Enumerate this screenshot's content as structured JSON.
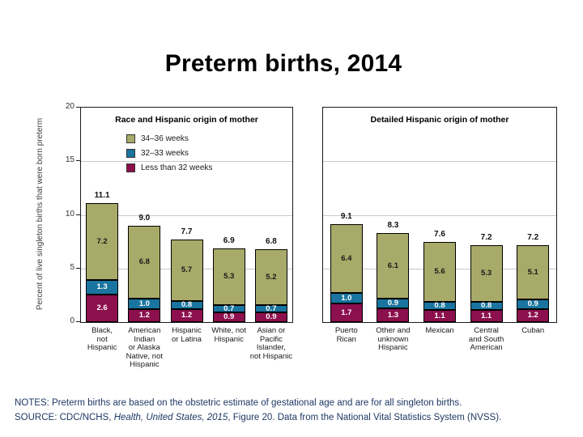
{
  "slide": {
    "title": "Preterm births, 2014",
    "notes_line1": "NOTES: Preterm births are based on the obstetric estimate of gestational age and are for all singleton births.",
    "source_prefix": "SOURCE: CDC/NCHS, ",
    "source_italic": "Health, United States, 2015",
    "source_suffix": ", Figure 20. Data from the National Vital Statistics System (NVSS).",
    "notes_color": "#1f3864"
  },
  "chart_data": [
    {
      "type": "bar",
      "stacked": true,
      "title": "Race and Hispanic origin of mother",
      "ylabel": "Percent of live singleton births that were born preterm",
      "ylim": [
        0,
        20
      ],
      "yticks": [
        "0",
        "5",
        "10",
        "15",
        "20"
      ],
      "gridlines": [
        5,
        10,
        15
      ],
      "grid_color": "#c9c9c9",
      "legend_visible": true,
      "legend_position": "upper-left-inside",
      "categories": [
        [
          "Black,",
          "not",
          "Hispanic"
        ],
        [
          "American",
          "Indian",
          "or Alaska",
          "Native, not",
          "Hispanic"
        ],
        [
          "Hispanic",
          "or Latina"
        ],
        [
          "White, not",
          "Hispanic"
        ],
        [
          "Asian or",
          "Pacific",
          "Islander,",
          "not Hispanic"
        ]
      ],
      "series": [
        {
          "name": "Less than 32 weeks",
          "color": "#8c0f4e",
          "label_color": "#ffffff",
          "values": [
            "2.6",
            "1.2",
            "1.2",
            "0.9",
            "0.9"
          ]
        },
        {
          "name": "32–33 weeks",
          "color": "#19759f",
          "label_color": "#ffffff",
          "values": [
            "1.3",
            "1.0",
            "0.8",
            "0.7",
            "0.7"
          ]
        },
        {
          "name": "34–36 weeks",
          "color": "#a8aa69",
          "label_color": "#1a1a1a",
          "values": [
            "7.2",
            "6.8",
            "5.7",
            "5.3",
            "5.2"
          ]
        }
      ],
      "totals": [
        "11.1",
        "9.0",
        "7.7",
        "6.9",
        "6.8"
      ]
    },
    {
      "type": "bar",
      "stacked": true,
      "title": "Detailed Hispanic origin of mother",
      "ylim": [
        0,
        20
      ],
      "yticks": [],
      "gridlines": [
        5,
        10,
        15
      ],
      "grid_color": "#c9c9c9",
      "legend_visible": false,
      "categories": [
        [
          "Puerto",
          "Rican"
        ],
        [
          "Other and",
          "unknown",
          "Hispanic"
        ],
        [
          "Mexican"
        ],
        [
          "Central",
          "and South",
          "American"
        ],
        [
          "Cuban"
        ]
      ],
      "series": [
        {
          "name": "Less than 32 weeks",
          "color": "#8c0f4e",
          "label_color": "#ffffff",
          "values": [
            "1.7",
            "1.3",
            "1.1",
            "1.1",
            "1.2"
          ]
        },
        {
          "name": "32–33 weeks",
          "color": "#19759f",
          "label_color": "#ffffff",
          "values": [
            "1.0",
            "0.9",
            "0.8",
            "0.8",
            "0.9"
          ]
        },
        {
          "name": "34–36 weeks",
          "color": "#a8aa69",
          "label_color": "#1a1a1a",
          "values": [
            "6.4",
            "6.1",
            "5.6",
            "5.3",
            "5.1"
          ]
        }
      ],
      "totals": [
        "9.1",
        "8.3",
        "7.6",
        "7.2",
        "7.2"
      ]
    }
  ]
}
